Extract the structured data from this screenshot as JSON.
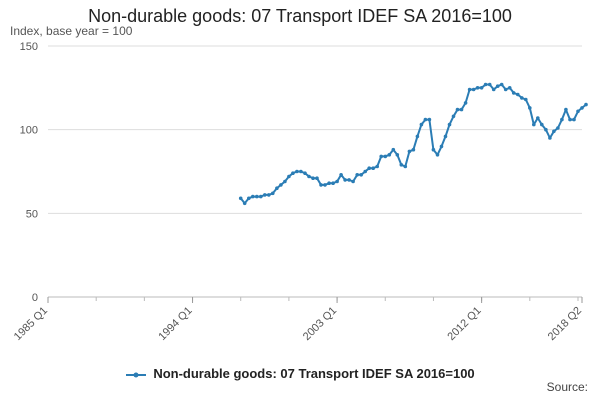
{
  "chart_data": {
    "type": "line",
    "title": "Non-durable goods: 07 Transport IDEF SA 2016=100",
    "y_unit": "Index, base year = 100",
    "ylim": [
      0,
      150
    ],
    "y_ticks": [
      "0",
      "50",
      "100",
      "150"
    ],
    "x_tick_labels": [
      "1985 Q1",
      "1994 Q1",
      "2003 Q1",
      "2012 Q1",
      "2018 Q2"
    ],
    "grid": "horizontal",
    "legend_position": "bottom",
    "source_label": "Source:",
    "color": "#2b7db5",
    "series": [
      {
        "name": "Non-durable goods: 07 Transport IDEF SA 2016=100",
        "start_quarter": "1997 Q1",
        "values": [
          59,
          56,
          59,
          60,
          60,
          60,
          61,
          61,
          62,
          65,
          67,
          69,
          72,
          74,
          75,
          75,
          74,
          72,
          71,
          71,
          67,
          67,
          68,
          68,
          69,
          73,
          70,
          70,
          69,
          73,
          73,
          75,
          77,
          77,
          78,
          84,
          84,
          85,
          88,
          85,
          79,
          78,
          87,
          88,
          96,
          103,
          106,
          106,
          88,
          85,
          90,
          96,
          103,
          108,
          112,
          112,
          116,
          124,
          124,
          125,
          125,
          127,
          127,
          124,
          126,
          127,
          124,
          125,
          122,
          121,
          119,
          118,
          113,
          103,
          107,
          103,
          100,
          95,
          99,
          101,
          106,
          112,
          106,
          106,
          111,
          113,
          115
        ]
      }
    ]
  }
}
